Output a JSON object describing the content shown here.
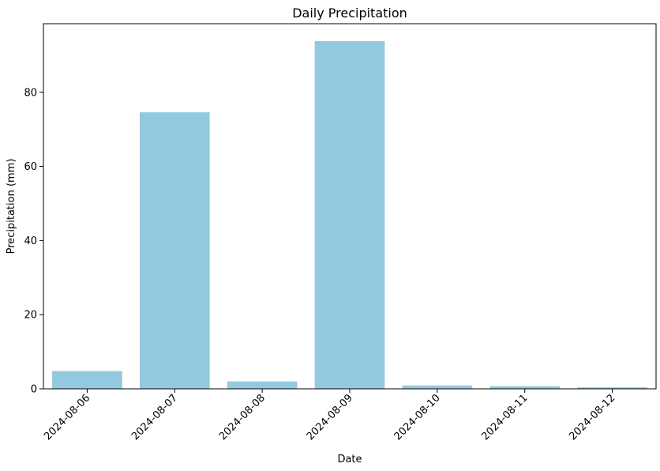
{
  "chart_data": {
    "type": "bar",
    "title": "Daily Precipitation",
    "xlabel": "Date",
    "ylabel": "Precipitation (mm)",
    "categories": [
      "2024-08-06",
      "2024-08-07",
      "2024-08-08",
      "2024-08-09",
      "2024-08-10",
      "2024-08-11",
      "2024-08-12"
    ],
    "values": [
      4.8,
      74.6,
      2.0,
      93.8,
      0.9,
      0.7,
      0.4
    ],
    "ylim": [
      0,
      98.5
    ],
    "yticks": [
      0,
      20,
      40,
      60,
      80
    ],
    "bar_color": "#93c9df",
    "grid": false,
    "legend": "none"
  }
}
